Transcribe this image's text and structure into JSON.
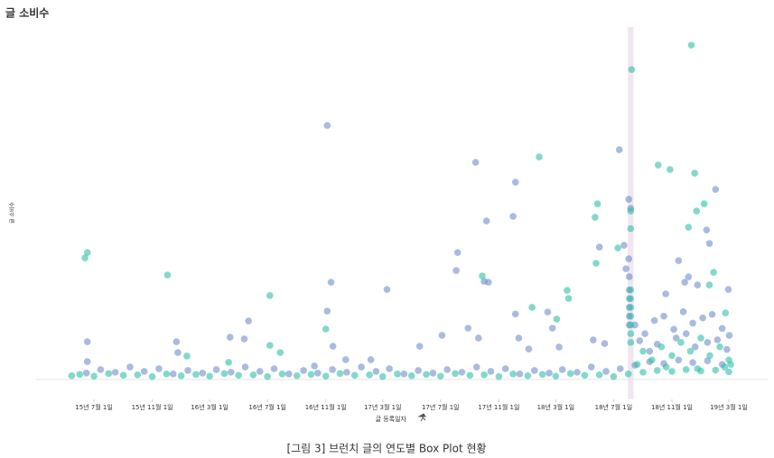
{
  "chart_data": {
    "type": "scatter",
    "title": "글 소비수",
    "ylabel": "글 소비수",
    "xlabel": "글 등록일자",
    "xlim": [
      "2015-03-01",
      "2019-05-01"
    ],
    "ylim": [
      -250,
      4000
    ],
    "xticks": [
      {
        "value": "2015-07-01",
        "label": "15년 7월 1일"
      },
      {
        "value": "2015-11-01",
        "label": "15년 11월 1일"
      },
      {
        "value": "2016-03-01",
        "label": "16년 3월 1일"
      },
      {
        "value": "2016-07-01",
        "label": "16년 7월 1일"
      },
      {
        "value": "2016-11-01",
        "label": "16년 11월 1일"
      },
      {
        "value": "2017-03-01",
        "label": "17년 3월 1일"
      },
      {
        "value": "2017-07-01",
        "label": "17년 7월 1일"
      },
      {
        "value": "2017-11-01",
        "label": "17년 11월 1일"
      },
      {
        "value": "2018-03-01",
        "label": "18년 3월 1일"
      },
      {
        "value": "2018-07-01",
        "label": "18년 7월 1일"
      },
      {
        "value": "2018-11-01",
        "label": "18년 11월 1일"
      },
      {
        "value": "2019-03-01",
        "label": "19년 3월 1일"
      }
    ],
    "highlight_x": [
      "2018-07-31",
      "2018-08-12"
    ],
    "series": [
      {
        "color": "#6f8dc8",
        "x": [
          "2015-06-17",
          "2015-06-17",
          "2015-12-22",
          "2015-12-25",
          "2016-05-22",
          "2016-04-13",
          "2016-05-13",
          "2016-11-04",
          "2016-11-12",
          "2016-11-04",
          "2016-11-16",
          "2017-03-10",
          "2017-09-13",
          "2017-10-06",
          "2017-12-06",
          "2017-12-01",
          "2017-08-06",
          "2017-08-03",
          "2017-10-01",
          "2017-10-10",
          "2017-08-28",
          "2017-09-19",
          "2017-12-06",
          "2017-12-13",
          "2018-02-12",
          "2018-02-22",
          "2018-07-13",
          "2018-08-02",
          "2018-08-06",
          "2018-06-01",
          "2018-07-23",
          "2018-07-27",
          "2018-08-02",
          "2019-02-01",
          "2019-01-13",
          "2019-01-19",
          "2018-11-15",
          "2018-10-19",
          "2018-12-06",
          "2018-12-25",
          "2019-02-28",
          "2018-11-28",
          "2017-05-18",
          "2017-07-04",
          "2017-02-04",
          "2016-12-13",
          "2016-10-08",
          "2018-01-03",
          "2018-03-08",
          "2018-05-19",
          "2018-06-12",
          "2018-08-15",
          "2018-09-05",
          "2018-09-25",
          "2018-10-15",
          "2018-11-05",
          "2018-11-25",
          "2018-12-15",
          "2019-01-05",
          "2019-01-25",
          "2019-02-15",
          "2019-03-02",
          "2018-08-25",
          "2018-10-01",
          "2018-11-10",
          "2018-12-01",
          "2019-01-15",
          "2019-02-05",
          "2018-09-15",
          "2018-12-20",
          "2019-02-25",
          "2018-08-03",
          "2018-08-03",
          "2018-08-03",
          "2018-08-03",
          "2018-08-03",
          "2018-08-03",
          "2015-06-15",
          "2015-07-15",
          "2015-08-15",
          "2015-09-15",
          "2015-10-15",
          "2015-11-15",
          "2015-12-15",
          "2016-01-15",
          "2016-02-15",
          "2016-03-15",
          "2016-04-15",
          "2016-05-15",
          "2016-06-15",
          "2016-07-15",
          "2016-08-15",
          "2016-09-15",
          "2016-10-15",
          "2016-11-15",
          "2016-12-15",
          "2017-01-15",
          "2017-02-15",
          "2017-03-15",
          "2017-04-15",
          "2017-05-15",
          "2017-06-15",
          "2017-07-15",
          "2017-08-15",
          "2017-09-15",
          "2017-10-15",
          "2017-11-15",
          "2017-12-15",
          "2018-01-15",
          "2018-02-15",
          "2018-03-15",
          "2018-04-15",
          "2018-05-15",
          "2018-06-15",
          "2018-07-15",
          "2018-08-15",
          "2018-09-15",
          "2018-10-15",
          "2018-11-15",
          "2018-12-15",
          "2019-01-15",
          "2019-02-15"
        ],
        "values": [
          408,
          182,
          408,
          285,
          645,
          460,
          440,
          2877,
          1087,
          758,
          357,
          1005,
          2456,
          1787,
          2229,
          1839,
          1427,
          1221,
          1097,
          1087,
          563,
          450,
          725,
          450,
          747,
          563,
          2600,
          2034,
          1931,
          1488,
          1509,
          1242,
          1355,
          2147,
          1684,
          1530,
          1334,
          954,
          1149,
          1056,
          1005,
          1087,
          357,
          481,
          203,
          203,
          131,
          326,
          347,
          429,
          388,
          600,
          500,
          650,
          700,
          550,
          750,
          620,
          680,
          720,
          560,
          480,
          420,
          380,
          450,
          500,
          400,
          430,
          300,
          350,
          320,
          1150,
          1000,
          900,
          800,
          700,
          600,
          50,
          90,
          60,
          120,
          70,
          100,
          40,
          80,
          50,
          90,
          60,
          120,
          70,
          100,
          40,
          80,
          50,
          90,
          60,
          120,
          70,
          100,
          40,
          80,
          50,
          90,
          60,
          120,
          70,
          100,
          40,
          80,
          50,
          90,
          60,
          120,
          70,
          100,
          140,
          180,
          160,
          200,
          170,
          190,
          150
        ]
      },
      {
        "color": "#2ebfa8",
        "x": [
          "2015-06-12",
          "2015-06-17",
          "2015-12-03",
          "2016-01-13",
          "2016-04-10",
          "2016-07-06",
          "2016-07-06",
          "2016-07-28",
          "2016-11-01",
          "2018-01-25",
          "2018-05-28",
          "2018-05-23",
          "2018-05-25",
          "2018-03-25",
          "2018-03-28",
          "2018-03-03",
          "2018-01-10",
          "2017-09-27",
          "2018-07-10",
          "2018-08-08",
          "2018-10-03",
          "2018-10-28",
          "2018-12-19",
          "2019-01-08",
          "2018-12-23",
          "2018-12-06",
          "2019-01-28",
          "2019-01-19",
          "2019-02-22",
          "2018-12-12",
          "2018-08-06",
          "2018-08-06",
          "2018-08-06",
          "2018-08-06",
          "2018-08-06",
          "2018-08-06",
          "2018-08-06",
          "2018-08-06",
          "2018-08-06",
          "2018-09-01",
          "2018-09-20",
          "2018-10-10",
          "2018-11-01",
          "2018-11-20",
          "2018-12-10",
          "2019-01-01",
          "2019-01-20",
          "2019-02-10",
          "2019-03-01",
          "2019-03-05",
          "2018-08-20",
          "2018-10-20",
          "2018-12-25",
          "2019-02-20",
          "2015-05-15",
          "2015-06-01",
          "2015-07-01",
          "2015-08-01",
          "2015-09-01",
          "2015-10-01",
          "2015-11-01",
          "2015-12-01",
          "2016-01-01",
          "2016-02-01",
          "2016-03-01",
          "2016-04-01",
          "2016-05-01",
          "2016-06-01",
          "2016-07-01",
          "2016-08-01",
          "2016-09-01",
          "2016-10-01",
          "2016-11-01",
          "2016-12-01",
          "2017-01-01",
          "2017-02-01",
          "2017-03-01",
          "2017-04-01",
          "2017-05-01",
          "2017-06-01",
          "2017-07-01",
          "2017-08-01",
          "2017-09-01",
          "2017-10-01",
          "2017-11-01",
          "2017-12-01",
          "2018-01-01",
          "2018-02-01",
          "2018-03-01",
          "2018-04-01",
          "2018-05-01",
          "2018-06-01",
          "2018-07-01",
          "2018-08-01",
          "2018-09-01",
          "2018-10-01",
          "2018-11-01",
          "2018-12-01",
          "2019-01-01",
          "2019-02-01",
          "2019-03-01"
        ],
        "values": [
          1365,
          1427,
          1170,
          245,
          173,
          935,
          367,
          285,
          553,
          2518,
          1982,
          1828,
          1304,
          995,
          902,
          666,
          800,
          1159,
          1478,
          3515,
          2425,
          2373,
          2332,
          1982,
          1900,
          1715,
          1200,
          1056,
          737,
          3793,
          1900,
          1700,
          1000,
          900,
          800,
          700,
          600,
          500,
          400,
          300,
          200,
          350,
          250,
          400,
          300,
          450,
          250,
          350,
          200,
          150,
          150,
          120,
          100,
          120,
          20,
          35,
          15,
          45,
          25,
          30,
          10,
          40,
          20,
          35,
          15,
          45,
          25,
          30,
          10,
          40,
          20,
          35,
          15,
          45,
          25,
          30,
          10,
          40,
          20,
          35,
          15,
          45,
          25,
          30,
          10,
          40,
          20,
          35,
          15,
          45,
          25,
          30,
          10,
          40,
          60,
          80,
          70,
          90,
          75,
          85,
          65
        ]
      }
    ]
  },
  "caption": "[그림 3] 브런치 글의 연도별 Box Plot 현황"
}
